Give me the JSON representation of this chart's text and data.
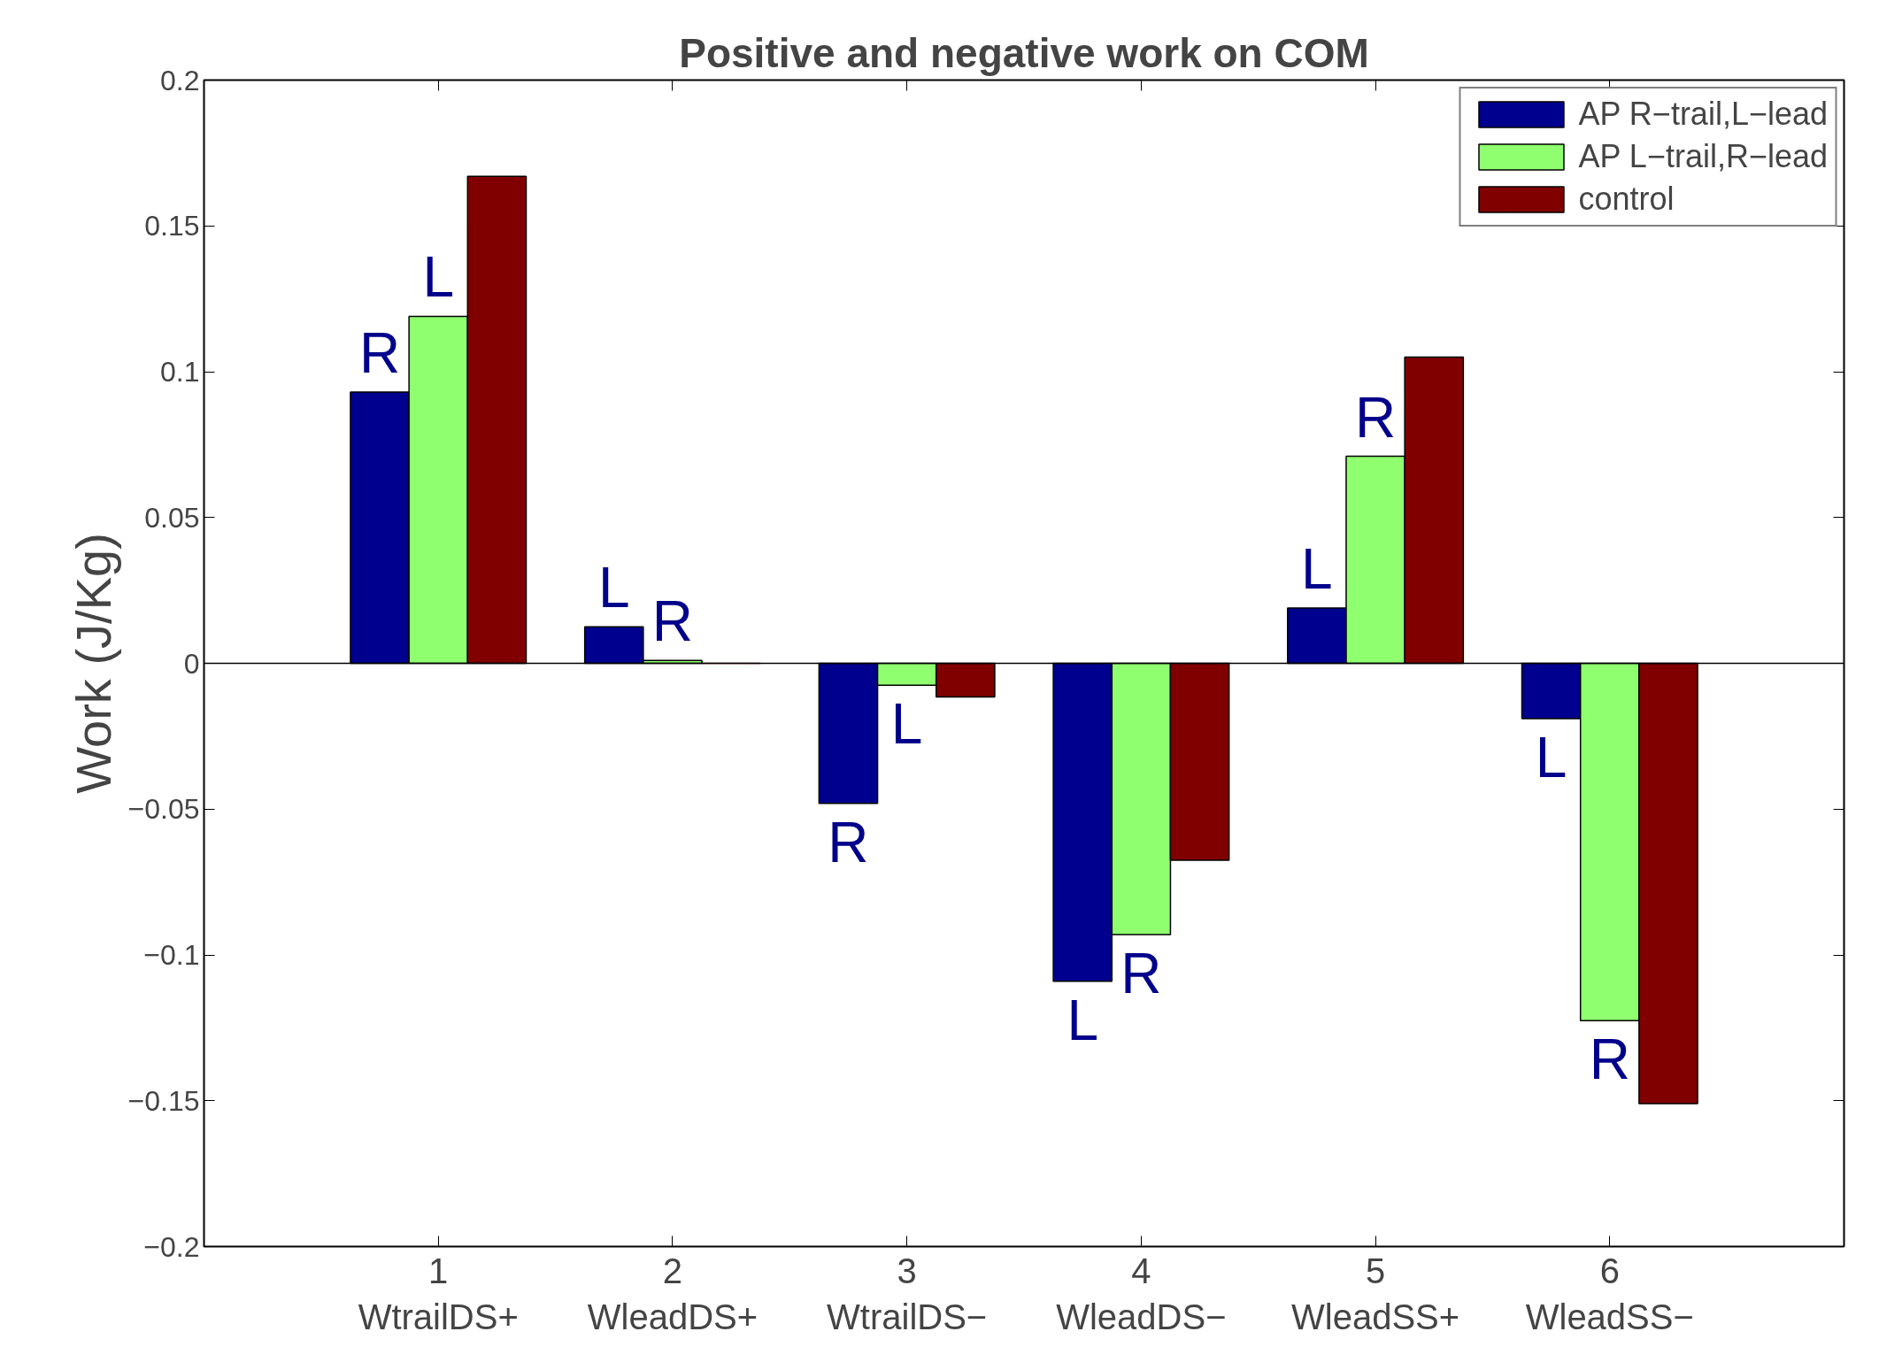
{
  "chart_data": {
    "type": "bar",
    "title": "Positive and negative work on COM",
    "ylabel": "Work (J/Kg)",
    "x": [
      1,
      2,
      3,
      4,
      5,
      6
    ],
    "xlim": [
      0,
      7
    ],
    "xticks": [
      {
        "value": 1,
        "label": "1\nWtrailDS+"
      },
      {
        "value": 2,
        "label": "2\nWleadDS+"
      },
      {
        "value": 3,
        "label": "3\nWtrailDS−"
      },
      {
        "value": 4,
        "label": "4\nWleadDS−"
      },
      {
        "value": 5,
        "label": "5\nWleadSS+"
      },
      {
        "value": 6,
        "label": "6\nWleadSS−"
      }
    ],
    "ylim": [
      -0.2,
      0.2
    ],
    "yticks": [
      {
        "value": -0.2,
        "label": "−0.2"
      },
      {
        "value": -0.15,
        "label": "−0.15"
      },
      {
        "value": -0.1,
        "label": "−0.1"
      },
      {
        "value": -0.05,
        "label": "−0.05"
      },
      0,
      0.05,
      0.1,
      0.15,
      0.2
    ],
    "series": [
      {
        "name": "AP R−trail,L−lead",
        "color": "#00008f",
        "values": [
          0.093,
          0.0125,
          -0.048,
          -0.109,
          0.019,
          -0.019
        ]
      },
      {
        "name": "AP L−trail,R−lead",
        "color": "#8fff6f",
        "values": [
          0.119,
          0.001,
          -0.0075,
          -0.093,
          0.071,
          -0.1225
        ]
      },
      {
        "name": "control",
        "color": "#800000",
        "values": [
          0.167,
          0.0,
          -0.0115,
          -0.0675,
          0.105,
          -0.151
        ]
      }
    ],
    "ref_lines": [
      {
        "axis": "y",
        "value": 0
      }
    ],
    "annotations": [
      {
        "text": "R",
        "x": 0.75,
        "y": 0.093
      },
      {
        "text": "L",
        "x": 1.0,
        "y": 0.119
      },
      {
        "text": "L",
        "x": 1.75,
        "y": 0.0125
      },
      {
        "text": "R",
        "x": 2.0,
        "y": 0.001
      },
      {
        "text": "R",
        "x": 2.75,
        "y": -0.048
      },
      {
        "text": "L",
        "x": 3.0,
        "y": -0.0075
      },
      {
        "text": "L",
        "x": 3.75,
        "y": -0.109
      },
      {
        "text": "R",
        "x": 4.0,
        "y": -0.093
      },
      {
        "text": "L",
        "x": 4.75,
        "y": 0.019
      },
      {
        "text": "R",
        "x": 5.0,
        "y": 0.071
      },
      {
        "text": "L",
        "x": 5.75,
        "y": -0.019
      },
      {
        "text": "R",
        "x": 6.0,
        "y": -0.1225
      }
    ],
    "legend": "top right",
    "grid": false
  }
}
